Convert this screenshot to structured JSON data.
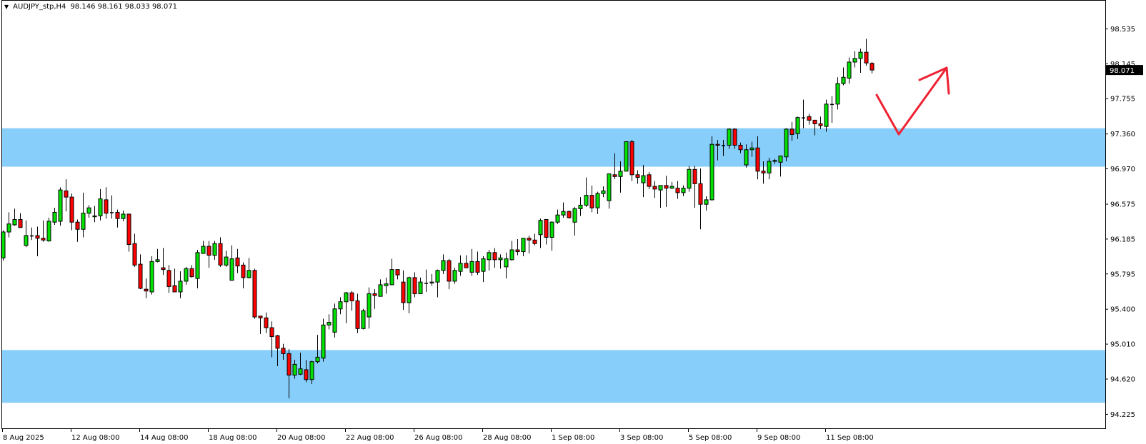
{
  "header": {
    "symbol": "AUDJPY_stp,H4",
    "ohlc": "98.146 98.161 98.033 98.071",
    "menu_icon": "triangle-down-icon"
  },
  "chart_data": {
    "type": "candlestick",
    "symbol": "AUDJPY_stp",
    "timeframe": "H4",
    "current_price": "98.071",
    "ylim": [
      94.065,
      98.854
    ],
    "grid": false,
    "y_ticks": [
      "98.535",
      "98.145",
      "97.755",
      "97.360",
      "96.970",
      "96.575",
      "96.185",
      "95.795",
      "95.400",
      "95.010",
      "94.620",
      "94.225"
    ],
    "x_ticks": [
      {
        "label": "8 Aug 2025",
        "bar": 0
      },
      {
        "label": "12 Aug 08:00",
        "bar": 12
      },
      {
        "label": "14 Aug 08:00",
        "bar": 24
      },
      {
        "label": "18 Aug 08:00",
        "bar": 36
      },
      {
        "label": "20 Aug 08:00",
        "bar": 48
      },
      {
        "label": "22 Aug 08:00",
        "bar": 60
      },
      {
        "label": "26 Aug 08:00",
        "bar": 72
      },
      {
        "label": "28 Aug 08:00",
        "bar": 84
      },
      {
        "label": "1 Sep 08:00",
        "bar": 96
      },
      {
        "label": "3 Sep 08:00",
        "bar": 108
      },
      {
        "label": "5 Sep 08:00",
        "bar": 120
      },
      {
        "label": "9 Sep 08:00",
        "bar": 132
      },
      {
        "label": "11 Sep 08:00",
        "bar": 144
      }
    ],
    "zones": [
      {
        "name": "resistance-zone",
        "from": 96.99,
        "to": 97.42
      },
      {
        "name": "support-zone",
        "from": 94.35,
        "to": 94.94
      }
    ],
    "colors": {
      "bull": "#00e000",
      "bear": "#ff0000",
      "outline": "#000000",
      "zone": "#87cefa",
      "annotation": "#ee2233",
      "price_box": "#000000"
    },
    "candle_format": [
      "open",
      "high",
      "low",
      "close"
    ],
    "candles": [
      [
        95.97,
        96.28,
        95.94,
        96.26
      ],
      [
        96.26,
        96.48,
        96.2,
        96.35
      ],
      [
        96.34,
        96.52,
        96.33,
        96.4
      ],
      [
        96.4,
        96.47,
        96.31,
        96.31
      ],
      [
        96.11,
        96.39,
        96.09,
        96.22
      ],
      [
        96.22,
        96.31,
        96.17,
        96.22
      ],
      [
        96.22,
        96.32,
        95.99,
        96.19
      ],
      [
        96.19,
        96.39,
        96.15,
        96.17
      ],
      [
        96.16,
        96.42,
        96.15,
        96.38
      ],
      [
        96.37,
        96.53,
        96.34,
        96.48
      ],
      [
        96.38,
        96.76,
        96.33,
        96.73
      ],
      [
        96.72,
        96.85,
        96.49,
        96.65
      ],
      [
        96.65,
        96.69,
        96.28,
        96.37
      ],
      [
        96.37,
        96.4,
        96.15,
        96.29
      ],
      [
        96.29,
        96.7,
        96.2,
        96.47
      ],
      [
        96.47,
        96.56,
        96.42,
        96.53
      ],
      [
        96.43,
        96.55,
        96.37,
        96.44
      ],
      [
        96.44,
        96.74,
        96.39,
        96.63
      ],
      [
        96.62,
        96.76,
        96.41,
        96.47
      ],
      [
        96.48,
        96.67,
        96.41,
        96.48
      ],
      [
        96.48,
        96.51,
        96.31,
        96.41
      ],
      [
        96.41,
        96.5,
        96.38,
        96.46
      ],
      [
        96.46,
        96.46,
        96.04,
        96.12
      ],
      [
        96.13,
        96.24,
        95.87,
        95.89
      ],
      [
        95.9,
        96.01,
        95.62,
        95.63
      ],
      [
        95.62,
        95.74,
        95.52,
        95.6
      ],
      [
        95.59,
        95.99,
        95.56,
        95.93
      ],
      [
        95.93,
        96.07,
        95.92,
        95.95
      ],
      [
        95.86,
        96.08,
        95.78,
        95.84
      ],
      [
        95.83,
        95.89,
        95.58,
        95.65
      ],
      [
        95.66,
        95.85,
        95.59,
        95.59
      ],
      [
        95.59,
        95.82,
        95.52,
        95.71
      ],
      [
        95.71,
        95.87,
        95.67,
        95.85
      ],
      [
        95.85,
        95.89,
        95.75,
        95.76
      ],
      [
        95.74,
        96.06,
        95.63,
        96.03
      ],
      [
        96.02,
        96.16,
        96.02,
        96.1
      ],
      [
        96.1,
        96.16,
        95.86,
        96.0
      ],
      [
        96.0,
        96.16,
        95.95,
        96.13
      ],
      [
        96.13,
        96.2,
        95.87,
        95.89
      ],
      [
        95.89,
        96.05,
        95.87,
        95.98
      ],
      [
        95.72,
        96.11,
        95.72,
        95.96
      ],
      [
        95.97,
        96.07,
        95.8,
        95.88
      ],
      [
        95.89,
        95.92,
        95.63,
        95.75
      ],
      [
        95.75,
        95.97,
        95.74,
        95.83
      ],
      [
        95.83,
        95.85,
        95.29,
        95.31
      ],
      [
        95.32,
        95.32,
        95.12,
        95.3
      ],
      [
        95.3,
        95.36,
        95.13,
        95.19
      ],
      [
        95.19,
        95.26,
        94.86,
        95.09
      ],
      [
        95.1,
        95.11,
        94.76,
        94.96
      ],
      [
        94.96,
        95.01,
        94.83,
        94.9
      ],
      [
        94.9,
        94.95,
        94.4,
        94.66
      ],
      [
        94.66,
        94.83,
        94.62,
        94.78
      ],
      [
        94.67,
        94.91,
        94.66,
        94.73
      ],
      [
        94.72,
        94.83,
        94.58,
        94.61
      ],
      [
        94.61,
        94.82,
        94.56,
        94.81
      ],
      [
        94.81,
        95.11,
        94.79,
        94.86
      ],
      [
        94.85,
        95.29,
        94.81,
        95.22
      ],
      [
        95.22,
        95.34,
        95.17,
        95.25
      ],
      [
        95.14,
        95.46,
        95.08,
        95.4
      ],
      [
        95.4,
        95.53,
        95.34,
        95.48
      ],
      [
        95.48,
        95.59,
        95.24,
        95.58
      ],
      [
        95.58,
        95.6,
        95.38,
        95.49
      ],
      [
        95.49,
        95.57,
        95.13,
        95.18
      ],
      [
        95.18,
        95.4,
        95.17,
        95.38
      ],
      [
        95.31,
        95.64,
        95.18,
        95.57
      ],
      [
        95.57,
        95.62,
        95.4,
        95.55
      ],
      [
        95.54,
        95.73,
        95.54,
        95.67
      ],
      [
        95.66,
        95.75,
        95.57,
        95.68
      ],
      [
        95.67,
        95.96,
        95.67,
        95.84
      ],
      [
        95.84,
        95.84,
        95.73,
        95.78
      ],
      [
        95.7,
        95.83,
        95.39,
        95.47
      ],
      [
        95.47,
        95.76,
        95.35,
        95.75
      ],
      [
        95.75,
        95.81,
        95.53,
        95.57
      ],
      [
        95.57,
        95.75,
        95.57,
        95.7
      ],
      [
        95.69,
        95.84,
        95.59,
        95.69
      ],
      [
        95.69,
        95.79,
        95.66,
        95.7
      ],
      [
        95.7,
        95.84,
        95.53,
        95.83
      ],
      [
        95.83,
        96.01,
        95.79,
        95.94
      ],
      [
        95.94,
        95.96,
        95.62,
        95.71
      ],
      [
        95.71,
        95.86,
        95.68,
        95.83
      ],
      [
        95.82,
        96.0,
        95.77,
        95.91
      ],
      [
        95.91,
        96.0,
        95.86,
        95.86
      ],
      [
        95.81,
        96.07,
        95.77,
        95.93
      ],
      [
        95.93,
        96.04,
        95.78,
        95.81
      ],
      [
        95.82,
        95.99,
        95.7,
        95.96
      ],
      [
        95.95,
        96.06,
        95.83,
        96.03
      ],
      [
        96.03,
        96.08,
        95.86,
        95.95
      ],
      [
        95.95,
        96.01,
        95.85,
        95.97
      ],
      [
        95.87,
        96.03,
        95.74,
        95.96
      ],
      [
        95.95,
        96.16,
        95.94,
        96.06
      ],
      [
        96.06,
        96.18,
        96.0,
        96.04
      ],
      [
        96.04,
        96.19,
        95.99,
        96.19
      ],
      [
        96.19,
        96.22,
        96.02,
        96.17
      ],
      [
        96.17,
        96.24,
        96.11,
        96.13
      ],
      [
        96.23,
        96.41,
        96.08,
        96.39
      ],
      [
        96.4,
        96.4,
        96.12,
        96.2
      ],
      [
        96.2,
        96.38,
        96.05,
        96.37
      ],
      [
        96.37,
        96.51,
        96.35,
        96.45
      ],
      [
        96.45,
        96.59,
        96.42,
        96.49
      ],
      [
        96.49,
        96.5,
        96.41,
        96.42
      ],
      [
        96.37,
        96.54,
        96.22,
        96.52
      ],
      [
        96.52,
        96.65,
        96.44,
        96.56
      ],
      [
        96.56,
        96.87,
        96.54,
        96.67
      ],
      [
        96.67,
        96.78,
        96.48,
        96.53
      ],
      [
        96.53,
        96.71,
        96.46,
        96.69
      ],
      [
        96.69,
        96.77,
        96.65,
        96.72
      ],
      [
        96.61,
        96.91,
        96.52,
        96.91
      ],
      [
        96.9,
        97.14,
        96.85,
        96.88
      ],
      [
        96.88,
        97.05,
        96.7,
        96.94
      ],
      [
        96.94,
        97.27,
        96.94,
        97.27
      ],
      [
        97.27,
        97.29,
        96.83,
        96.9
      ],
      [
        96.9,
        96.95,
        96.8,
        96.87
      ],
      [
        96.81,
        97.01,
        96.65,
        96.89
      ],
      [
        96.9,
        96.93,
        96.74,
        96.77
      ],
      [
        96.77,
        96.83,
        96.64,
        96.74
      ],
      [
        96.73,
        96.78,
        96.53,
        96.78
      ],
      [
        96.78,
        96.89,
        96.54,
        96.75
      ],
      [
        96.75,
        96.82,
        96.74,
        96.77
      ],
      [
        96.75,
        96.83,
        96.63,
        96.7
      ],
      [
        96.7,
        96.78,
        96.66,
        96.75
      ],
      [
        96.75,
        97.0,
        96.71,
        96.96
      ],
      [
        96.96,
        97.0,
        96.53,
        96.8
      ],
      [
        96.8,
        96.97,
        96.29,
        96.57
      ],
      [
        96.57,
        96.66,
        96.5,
        96.62
      ],
      [
        96.62,
        97.33,
        96.61,
        97.24
      ],
      [
        97.24,
        97.29,
        97.06,
        97.23
      ],
      [
        97.23,
        97.29,
        97.11,
        97.23
      ],
      [
        97.23,
        97.42,
        97.19,
        97.41
      ],
      [
        97.41,
        97.42,
        97.19,
        97.23
      ],
      [
        97.23,
        97.26,
        97.14,
        97.18
      ],
      [
        97.01,
        97.24,
        96.98,
        97.18
      ],
      [
        97.18,
        97.27,
        97.1,
        97.2
      ],
      [
        97.2,
        97.33,
        96.85,
        96.94
      ],
      [
        96.94,
        97.05,
        96.8,
        96.92
      ],
      [
        96.92,
        97.09,
        96.85,
        97.05
      ],
      [
        97.05,
        97.08,
        97.02,
        97.06
      ],
      [
        97.04,
        97.11,
        96.88,
        97.11
      ],
      [
        97.1,
        97.42,
        97.05,
        97.41
      ],
      [
        97.41,
        97.49,
        97.28,
        97.35
      ],
      [
        97.36,
        97.55,
        97.3,
        97.54
      ],
      [
        97.54,
        97.74,
        97.42,
        97.54
      ],
      [
        97.55,
        97.58,
        97.46,
        97.51
      ],
      [
        97.51,
        97.51,
        97.34,
        97.47
      ],
      [
        97.47,
        97.55,
        97.41,
        97.45
      ],
      [
        97.44,
        97.74,
        97.38,
        97.69
      ],
      [
        97.69,
        97.78,
        97.48,
        97.69
      ],
      [
        97.69,
        97.99,
        97.63,
        97.92
      ],
      [
        97.92,
        98.1,
        97.9,
        97.99
      ],
      [
        97.98,
        98.21,
        97.92,
        98.16
      ],
      [
        98.16,
        98.28,
        98.1,
        98.2
      ],
      [
        98.2,
        98.31,
        98.04,
        98.27
      ],
      [
        98.27,
        98.42,
        98.12,
        98.15
      ],
      [
        98.146,
        98.161,
        98.033,
        98.071
      ]
    ]
  }
}
